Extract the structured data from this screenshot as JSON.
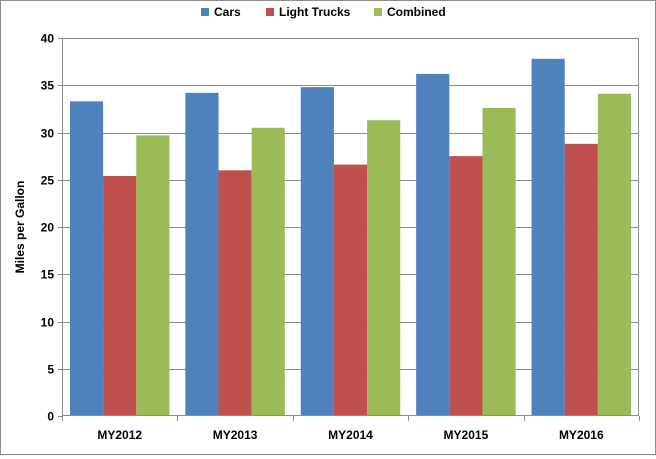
{
  "chart_data": {
    "type": "bar",
    "title": "",
    "xlabel": "",
    "ylabel": "Miles per Gallon",
    "categories": [
      "MY2012",
      "MY2013",
      "MY2014",
      "MY2015",
      "MY2016"
    ],
    "series": [
      {
        "name": "Cars",
        "color": "#4f81bd",
        "values": [
          33.3,
          34.2,
          34.8,
          36.2,
          37.8
        ]
      },
      {
        "name": "Light Trucks",
        "color": "#c0504d",
        "values": [
          25.4,
          26.0,
          26.6,
          27.5,
          28.8
        ]
      },
      {
        "name": "Combined",
        "color": "#9bbb59",
        "values": [
          29.7,
          30.5,
          31.3,
          32.6,
          34.1
        ]
      }
    ],
    "ylim": [
      0,
      40
    ],
    "yticks": [
      0,
      5,
      10,
      15,
      20,
      25,
      30,
      35,
      40
    ],
    "grid": true,
    "legend": "top-center"
  }
}
